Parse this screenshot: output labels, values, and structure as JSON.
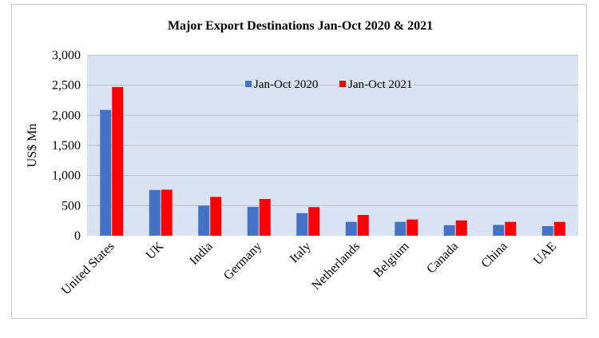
{
  "chart_data": {
    "type": "bar",
    "title": "Major Export Destinations Jan-Oct 2020 & 2021",
    "xlabel": "",
    "ylabel": "US$ Mn",
    "ylim": [
      0,
      3000
    ],
    "yticks": [
      "0",
      "500",
      "1,000",
      "1,500",
      "2,000",
      "2,500",
      "3,000"
    ],
    "ytick_values": [
      0,
      500,
      1000,
      1500,
      2000,
      2500,
      3000
    ],
    "grid": true,
    "legend_position": "top-center (inside plot)",
    "categories": [
      "United States",
      "UK",
      "India",
      "Germany",
      "Italy",
      "Netherlands",
      "Belgium",
      "Canada",
      "China",
      "UAE"
    ],
    "series": [
      {
        "name": "Jan-Oct 2020",
        "color": "#4472C4",
        "values": [
          2090,
          760,
          500,
          480,
          375,
          230,
          230,
          175,
          180,
          160
        ]
      },
      {
        "name": "Jan-Oct 2021",
        "color": "#FF0000",
        "values": [
          2470,
          765,
          645,
          610,
          475,
          345,
          270,
          255,
          230,
          230
        ]
      }
    ],
    "plot_background": "#DAE3F3",
    "gridline_color": "#BFBFBF"
  }
}
